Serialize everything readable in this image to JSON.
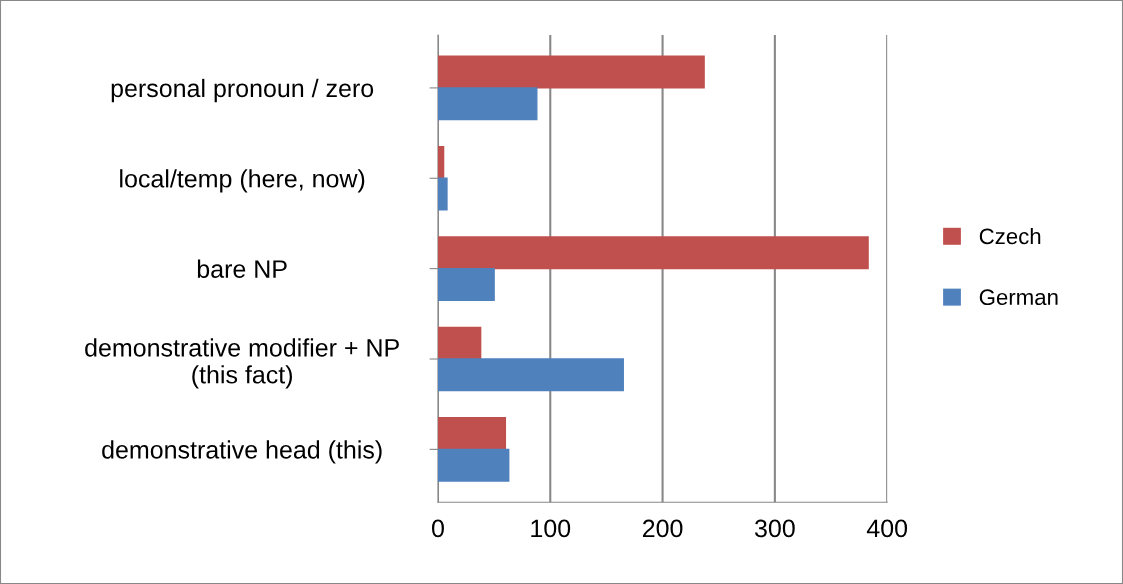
{
  "chart_data": {
    "type": "bar",
    "orientation": "horizontal",
    "categories": [
      "personal pronoun / zero",
      "local/temp (here, now)",
      "bare NP",
      "demonstrative modifier + NP\n(this fact)",
      "demonstrative head (this)"
    ],
    "series": [
      {
        "name": "Czech",
        "color": "#c0504d",
        "values": [
          237,
          5,
          383,
          38,
          60
        ]
      },
      {
        "name": "German",
        "color": "#4f81bd",
        "values": [
          88,
          8,
          50,
          165,
          63
        ]
      }
    ],
    "xlim": [
      0,
      400
    ],
    "xticks": [
      0,
      100,
      200,
      300,
      400
    ],
    "grid": "x",
    "legend": "right"
  }
}
